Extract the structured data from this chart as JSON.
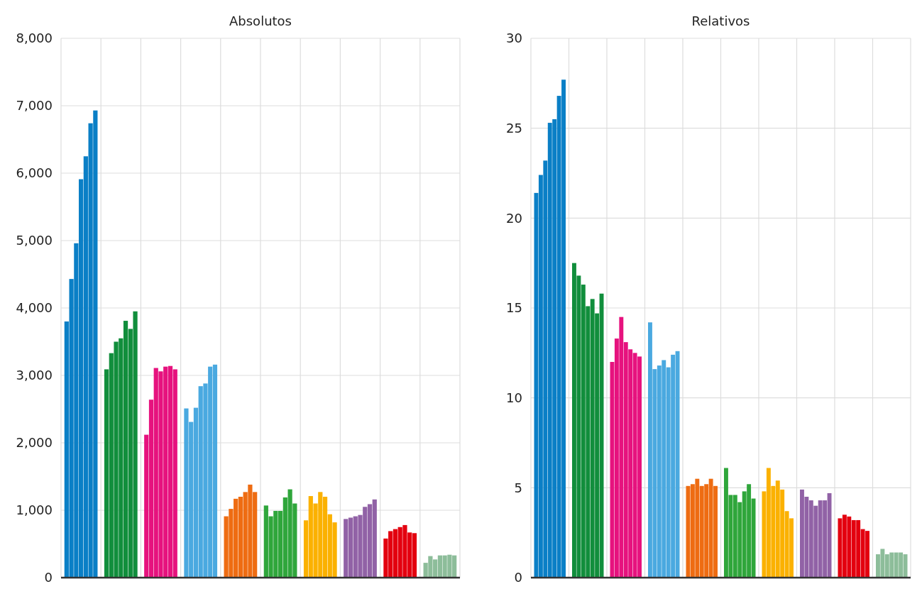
{
  "chart_data": [
    {
      "type": "bar",
      "title": "Absolutos",
      "categories": [
        null,
        null,
        null,
        null,
        null,
        null,
        null,
        null,
        null,
        null
      ],
      "ylim": [
        0,
        8000
      ],
      "yticks": [
        {
          "value": 0,
          "label": "0"
        },
        {
          "value": 1000,
          "label": "1,000"
        },
        {
          "value": 2000,
          "label": "2,000"
        },
        {
          "value": 3000,
          "label": "3,000"
        },
        {
          "value": 4000,
          "label": "4,000"
        },
        {
          "value": 5000,
          "label": "5,000"
        },
        {
          "value": 6000,
          "label": "6,000"
        },
        {
          "value": 7000,
          "label": "7,000"
        },
        {
          "value": 8000,
          "label": "8,000"
        }
      ],
      "grid": true,
      "series": [
        {
          "colors": [
            "#0a7fc6",
            "#118e3c",
            "#e6127e",
            "#4aa9e0",
            "#ee6c12",
            "#2fa63b",
            "#fbb100",
            "#9162a6",
            "#e3000f",
            "#8dbd9a"
          ],
          "values": [
            3800,
            3090,
            2120,
            2510,
            910,
            1070,
            850,
            870,
            580,
            220
          ]
        },
        {
          "colors": [
            "#0a7fc6",
            "#118e3c",
            "#e6127e",
            "#4aa9e0",
            "#ee6c12",
            "#2fa63b",
            "#fbb100",
            "#9162a6",
            "#e3000f",
            "#8dbd9a"
          ],
          "values": [
            4430,
            3330,
            2640,
            2310,
            1020,
            910,
            1210,
            890,
            690,
            320
          ]
        },
        {
          "colors": [
            "#0a7fc6",
            "#118e3c",
            "#e6127e",
            "#4aa9e0",
            "#ee6c12",
            "#2fa63b",
            "#fbb100",
            "#9162a6",
            "#e3000f",
            "#8dbd9a"
          ],
          "values": [
            4960,
            3500,
            3110,
            2520,
            1170,
            990,
            1100,
            910,
            720,
            270
          ]
        },
        {
          "colors": [
            "#0a7fc6",
            "#118e3c",
            "#e6127e",
            "#4aa9e0",
            "#ee6c12",
            "#2fa63b",
            "#fbb100",
            "#9162a6",
            "#e3000f",
            "#8dbd9a"
          ],
          "values": [
            5910,
            3550,
            3060,
            2840,
            1200,
            990,
            1270,
            930,
            750,
            330
          ]
        },
        {
          "colors": [
            "#0a7fc6",
            "#118e3c",
            "#e6127e",
            "#4aa9e0",
            "#ee6c12",
            "#2fa63b",
            "#fbb100",
            "#9162a6",
            "#e3000f",
            "#8dbd9a"
          ],
          "values": [
            6250,
            3810,
            3130,
            2880,
            1270,
            1190,
            1200,
            1050,
            780,
            330
          ]
        },
        {
          "colors": [
            "#0a7fc6",
            "#118e3c",
            "#e6127e",
            "#4aa9e0",
            "#ee6c12",
            "#2fa63b",
            "#fbb100",
            "#9162a6",
            "#e3000f",
            "#8dbd9a"
          ],
          "values": [
            6740,
            3690,
            3140,
            3130,
            1380,
            1310,
            940,
            1090,
            670,
            340
          ]
        },
        {
          "colors": [
            "#0a7fc6",
            "#118e3c",
            "#e6127e",
            "#4aa9e0",
            "#ee6c12",
            "#2fa63b",
            "#fbb100",
            "#9162a6",
            "#e3000f",
            "#8dbd9a"
          ],
          "values": [
            6930,
            3950,
            3090,
            3160,
            1270,
            1100,
            820,
            1160,
            660,
            330
          ]
        }
      ]
    },
    {
      "type": "bar",
      "title": "Relativos",
      "categories": [
        null,
        null,
        null,
        null,
        null,
        null,
        null,
        null,
        null,
        null
      ],
      "ylim": [
        0,
        30
      ],
      "yticks": [
        0,
        5,
        10,
        15,
        20,
        25,
        30
      ],
      "grid": true,
      "series": [
        {
          "colors": [
            "#0a7fc6",
            "#118e3c",
            "#e6127e",
            "#4aa9e0",
            "#ee6c12",
            "#2fa63b",
            "#fbb100",
            "#9162a6",
            "#e3000f",
            "#8dbd9a"
          ],
          "values": [
            21.4,
            17.5,
            12.0,
            14.2,
            5.1,
            6.1,
            4.8,
            4.9,
            3.3,
            1.3
          ]
        },
        {
          "colors": [
            "#0a7fc6",
            "#118e3c",
            "#e6127e",
            "#4aa9e0",
            "#ee6c12",
            "#2fa63b",
            "#fbb100",
            "#9162a6",
            "#e3000f",
            "#8dbd9a"
          ],
          "values": [
            22.4,
            16.8,
            13.3,
            11.6,
            5.2,
            4.6,
            6.1,
            4.5,
            3.5,
            1.6
          ]
        },
        {
          "colors": [
            "#0a7fc6",
            "#118e3c",
            "#e6127e",
            "#4aa9e0",
            "#ee6c12",
            "#2fa63b",
            "#fbb100",
            "#9162a6",
            "#e3000f",
            "#8dbd9a"
          ],
          "values": [
            23.2,
            16.3,
            14.5,
            11.8,
            5.5,
            4.6,
            5.1,
            4.3,
            3.4,
            1.3
          ]
        },
        {
          "colors": [
            "#0a7fc6",
            "#118e3c",
            "#e6127e",
            "#4aa9e0",
            "#ee6c12",
            "#2fa63b",
            "#fbb100",
            "#9162a6",
            "#e3000f",
            "#8dbd9a"
          ],
          "values": [
            25.3,
            15.1,
            13.1,
            12.1,
            5.1,
            4.2,
            5.4,
            4.0,
            3.2,
            1.4
          ]
        },
        {
          "colors": [
            "#0a7fc6",
            "#118e3c",
            "#e6127e",
            "#4aa9e0",
            "#ee6c12",
            "#2fa63b",
            "#fbb100",
            "#9162a6",
            "#e3000f",
            "#8dbd9a"
          ],
          "values": [
            25.5,
            15.5,
            12.7,
            11.7,
            5.2,
            4.8,
            4.9,
            4.3,
            3.2,
            1.4
          ]
        },
        {
          "colors": [
            "#0a7fc6",
            "#118e3c",
            "#e6127e",
            "#4aa9e0",
            "#ee6c12",
            "#2fa63b",
            "#fbb100",
            "#9162a6",
            "#e3000f",
            "#8dbd9a"
          ],
          "values": [
            26.8,
            14.7,
            12.5,
            12.4,
            5.5,
            5.2,
            3.7,
            4.3,
            2.7,
            1.4
          ]
        },
        {
          "colors": [
            "#0a7fc6",
            "#118e3c",
            "#e6127e",
            "#4aa9e0",
            "#ee6c12",
            "#2fa63b",
            "#fbb100",
            "#9162a6",
            "#e3000f",
            "#8dbd9a"
          ],
          "values": [
            27.7,
            15.8,
            12.3,
            12.6,
            5.1,
            4.4,
            3.3,
            4.7,
            2.6,
            1.3
          ]
        }
      ]
    }
  ]
}
